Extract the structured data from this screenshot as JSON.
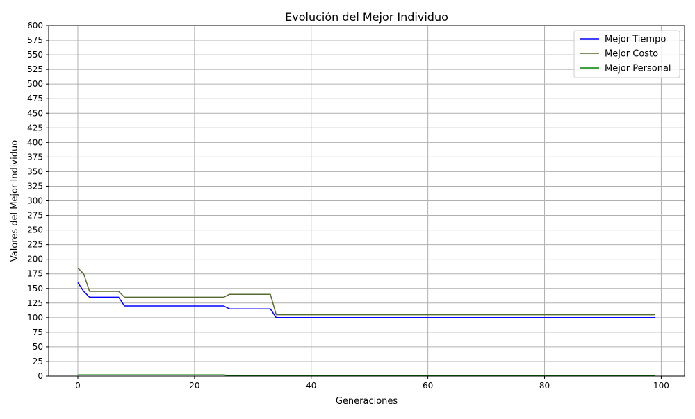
{
  "chart_data": {
    "type": "line",
    "title": "Evolución del Mejor Individuo",
    "xlabel": "Generaciones",
    "ylabel": "Valores del Mejor Individuo",
    "xlim": [
      -5,
      104
    ],
    "ylim": [
      0,
      600
    ],
    "x_ticks": [
      0,
      20,
      40,
      60,
      80,
      100
    ],
    "y_ticks": [
      0,
      25,
      50,
      75,
      100,
      125,
      150,
      175,
      200,
      225,
      250,
      275,
      300,
      325,
      350,
      375,
      400,
      425,
      450,
      475,
      500,
      525,
      550,
      575,
      600
    ],
    "grid": true,
    "legend_position": "top-right",
    "series": [
      {
        "name": "Mejor Tiempo",
        "color": "#0000ff",
        "points": [
          [
            0,
            160
          ],
          [
            1,
            145
          ],
          [
            2,
            135
          ],
          [
            7,
            135
          ],
          [
            8,
            120
          ],
          [
            25,
            120
          ],
          [
            26,
            115
          ],
          [
            33,
            115
          ],
          [
            34,
            100
          ],
          [
            99,
            100
          ]
        ]
      },
      {
        "name": "Mejor Costo",
        "color": "#556b2f",
        "points": [
          [
            0,
            185
          ],
          [
            1,
            175
          ],
          [
            2,
            145
          ],
          [
            7,
            145
          ],
          [
            8,
            135
          ],
          [
            25,
            135
          ],
          [
            26,
            140
          ],
          [
            33,
            140
          ],
          [
            34,
            105
          ],
          [
            99,
            105
          ]
        ]
      },
      {
        "name": "Mejor Personal",
        "color": "#008000",
        "points": [
          [
            0,
            2
          ],
          [
            25,
            2
          ],
          [
            26,
            1
          ],
          [
            99,
            1
          ]
        ]
      }
    ]
  }
}
